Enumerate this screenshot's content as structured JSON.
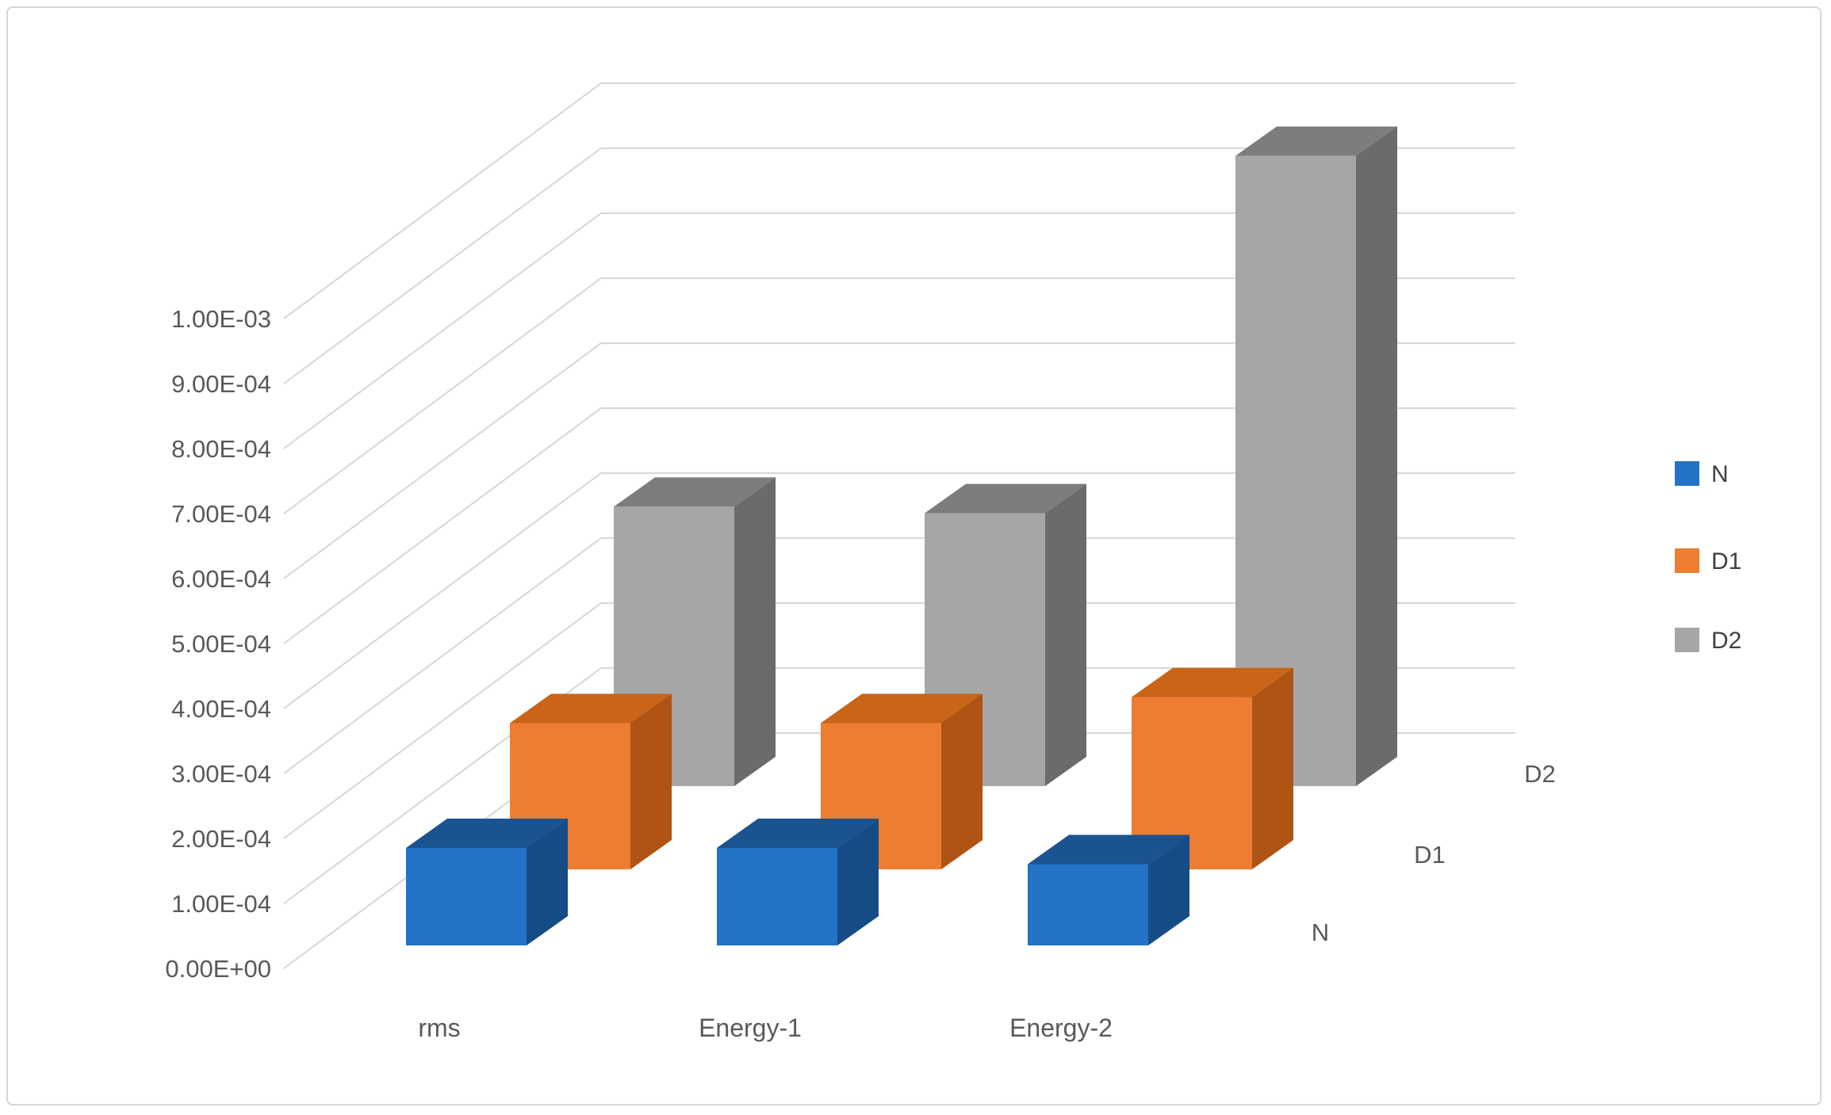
{
  "window": {
    "background": "#FFFFFF",
    "frame_border_color": "#D6D6D6"
  },
  "chart_data": {
    "type": "bar",
    "subtype": "3d-column",
    "title": "",
    "categories": [
      "rms",
      "Energy-1",
      "Energy-2"
    ],
    "series": [
      {
        "name": "N",
        "color": "#2272C8",
        "color_top": "#1B5390",
        "color_side": "#164C86",
        "values": [
          0.00015,
          0.00015,
          0.000125
        ]
      },
      {
        "name": "D1",
        "color": "#ED7D31",
        "color_top": "#C96418",
        "color_side": "#AF5415",
        "values": [
          0.000225,
          0.000225,
          0.000265
        ]
      },
      {
        "name": "D2",
        "color": "#A6A6A6",
        "color_top": "#7D7D7D",
        "color_side": "#6B6B6B",
        "values": [
          0.00043,
          0.00042,
          0.00097
        ]
      }
    ],
    "xlabel": "",
    "ylabel": "",
    "ylim": [
      0,
      0.001
    ],
    "y_ticks": [
      "0.00E+00",
      "1.00E-04",
      "2.00E-04",
      "3.00E-04",
      "4.00E-04",
      "5.00E-04",
      "6.00E-04",
      "7.00E-04",
      "8.00E-04",
      "9.00E-04",
      "1.00E-03"
    ],
    "depth_axis_labels": [
      "N",
      "D1",
      "D2"
    ],
    "legend": {
      "position": "right",
      "entries": [
        "N",
        "D1",
        "D2"
      ]
    },
    "grid": true,
    "gridline_color": "#D9D9D9",
    "axis_label_color": "#595959",
    "legend_label_color": "#404040"
  }
}
